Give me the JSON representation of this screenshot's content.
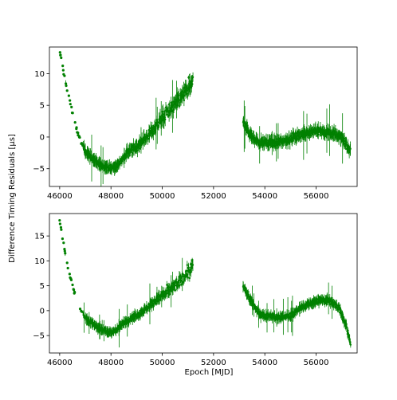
{
  "chart_data": {
    "type": "scatter",
    "shared_ylabel": "Difference Timing Residuals [μs]",
    "xlabel": "Epoch [MJD]",
    "series_color": "#008000",
    "marker": "filled-circle-with-errorbars",
    "gap_mjd": [
      51200,
      53150
    ],
    "panels": [
      {
        "name": "top-panel",
        "xlim": [
          45600,
          57600
        ],
        "ylim": [
          -7.8,
          14.2
        ],
        "xticks": [
          46000,
          48000,
          50000,
          52000,
          54000,
          56000
        ],
        "yticks": [
          -5,
          0,
          5,
          10
        ],
        "trend": [
          [
            46000,
            13.5
          ],
          [
            46100,
            11.5
          ],
          [
            46300,
            7.0
          ],
          [
            46500,
            4.0
          ],
          [
            46700,
            0.5
          ],
          [
            47000,
            -2.3
          ],
          [
            47500,
            -4.3
          ],
          [
            48000,
            -5.0
          ],
          [
            48300,
            -4.4
          ],
          [
            48600,
            -2.6
          ],
          [
            49000,
            -1.5
          ],
          [
            49500,
            0.5
          ],
          [
            50000,
            3.0
          ],
          [
            50500,
            5.2
          ],
          [
            51000,
            7.5
          ],
          [
            51200,
            8.5
          ],
          [
            53150,
            2.5
          ],
          [
            53400,
            0.5
          ],
          [
            53800,
            -1.0
          ],
          [
            54500,
            -0.8
          ],
          [
            55000,
            -0.3
          ],
          [
            55500,
            0.5
          ],
          [
            56000,
            1.0
          ],
          [
            56500,
            0.7
          ],
          [
            57000,
            0.0
          ],
          [
            57300,
            -2.0
          ]
        ]
      },
      {
        "name": "bottom-panel",
        "xlim": [
          45600,
          57600
        ],
        "ylim": [
          -8.5,
          19.5
        ],
        "xticks": [
          46000,
          48000,
          50000,
          52000,
          54000,
          56000
        ],
        "yticks": [
          -5,
          0,
          5,
          10,
          15
        ],
        "trend": [
          [
            46000,
            18.0
          ],
          [
            46100,
            15.0
          ],
          [
            46300,
            9.0
          ],
          [
            46500,
            5.0
          ],
          [
            46700,
            1.5
          ],
          [
            47000,
            -1.5
          ],
          [
            47500,
            -3.5
          ],
          [
            48000,
            -4.5
          ],
          [
            48300,
            -3.5
          ],
          [
            48600,
            -2.0
          ],
          [
            49000,
            -1.0
          ],
          [
            49500,
            1.0
          ],
          [
            50000,
            3.0
          ],
          [
            50500,
            5.0
          ],
          [
            51000,
            7.5
          ],
          [
            51200,
            9.0
          ],
          [
            53150,
            5.0
          ],
          [
            53400,
            2.5
          ],
          [
            53800,
            -0.8
          ],
          [
            54500,
            -1.5
          ],
          [
            55000,
            -1.0
          ],
          [
            55500,
            0.8
          ],
          [
            56000,
            2.0
          ],
          [
            56500,
            2.2
          ],
          [
            56900,
            0.5
          ],
          [
            57200,
            -3.5
          ],
          [
            57350,
            -7.0
          ]
        ]
      }
    ]
  }
}
